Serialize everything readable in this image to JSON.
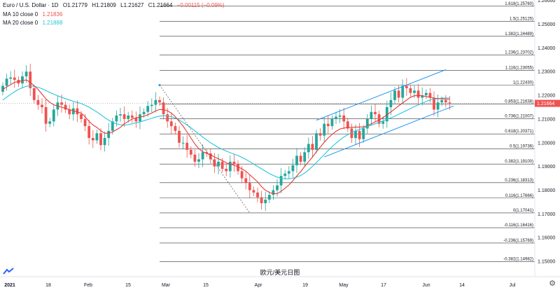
{
  "header": {
    "symbol": "Euro / U.S. Dollar · 1D",
    "open": "O1.21779",
    "high": "H1.21809",
    "low": "L1.21627",
    "close": "C1.21664",
    "change": "−0.00115 (−0.09%)",
    "ma10_label": "MA 10 close 0",
    "ma10_value": "1.21836",
    "ma20_label": "MA 20 close 0",
    "ma20_value": "1.21888"
  },
  "caption": "欧元/美元日图",
  "colors": {
    "up": "#26a69a",
    "down": "#ef5350",
    "ma10": "#e53935",
    "ma20": "#26c6da",
    "channel": "#2196f3",
    "fib": "#333333"
  },
  "chart_data": {
    "type": "candlestick",
    "ylim": [
      1.1435,
      1.2602
    ],
    "y_ticks": [
      "1.26000",
      "1.25000",
      "1.24000",
      "1.23000",
      "1.22000",
      "1.21000",
      "1.20000",
      "1.19000",
      "1.18000",
      "1.17000",
      "1.16000",
      "1.15000"
    ],
    "x_ticks": [
      "2021",
      "18",
      "Feb",
      "15",
      "Mar",
      "15",
      "Apr",
      "19",
      "May",
      "17",
      "Jun",
      "14",
      "Jul"
    ],
    "fib_levels": [
      {
        "ratio": "1.618",
        "value": 1.2576,
        "label": "1.618(1.25760)"
      },
      {
        "ratio": "1.5",
        "value": 1.25125,
        "label": "1.5(1.25125)"
      },
      {
        "ratio": "1.382",
        "value": 1.24489,
        "label": "1.382(1.24489)"
      },
      {
        "ratio": "1.236",
        "value": 1.23702,
        "label": "1.236(1.23702)"
      },
      {
        "ratio": "1.116",
        "value": 1.23055,
        "label": "1.116(1.23055)"
      },
      {
        "ratio": "1",
        "value": 1.2243,
        "label": "1(1.22430)"
      },
      {
        "ratio": "0.853",
        "value": 1.21638,
        "label": "0.853(1.21638)"
      },
      {
        "ratio": "0.736",
        "value": 1.21007,
        "label": "0.736(1.21007)"
      },
      {
        "ratio": "0.618",
        "value": 1.20371,
        "label": "0.618(1.20371)"
      },
      {
        "ratio": "0.5",
        "value": 1.19736,
        "label": "0.5(1.19736)"
      },
      {
        "ratio": "0.382",
        "value": 1.191,
        "label": "0.382(1.19100)"
      },
      {
        "ratio": "0.236",
        "value": 1.18313,
        "label": "0.236(1.18313)"
      },
      {
        "ratio": "0.116",
        "value": 1.17666,
        "label": "0.116(1.17666)"
      },
      {
        "ratio": "0",
        "value": 1.17041,
        "label": "0(1.17041)"
      },
      {
        "ratio": "-0.116",
        "value": 1.16416,
        "label": "-0.116(1.16416)"
      },
      {
        "ratio": "-0.236",
        "value": 1.15769,
        "label": "-0.236(1.15769)"
      },
      {
        "ratio": "-0.382",
        "value": 1.14982,
        "label": "-0.382(1.14982)"
      }
    ],
    "price_label": "1.21664",
    "closes": [
      1.224,
      1.227,
      1.2275,
      1.2265,
      1.225,
      1.228,
      1.23,
      1.223,
      1.218,
      1.216,
      1.215,
      1.208,
      1.209,
      1.214,
      1.217,
      1.216,
      1.214,
      1.212,
      1.2145,
      1.212,
      1.21,
      1.207,
      1.202,
      1.201,
      1.204,
      1.199,
      1.202,
      1.205,
      1.209,
      1.2115,
      1.212,
      1.21,
      1.2115,
      1.2105,
      1.209,
      1.212,
      1.213,
      1.2155,
      1.216,
      1.218,
      1.217,
      1.212,
      1.209,
      1.207,
      1.205,
      1.2,
      1.2,
      1.197,
      1.195,
      1.192,
      1.193,
      1.196,
      1.1955,
      1.193,
      1.19,
      1.192,
      1.189,
      1.188,
      1.192,
      1.191,
      1.188,
      1.185,
      1.183,
      1.18,
      1.179,
      1.177,
      1.1745,
      1.176,
      1.178,
      1.18,
      1.182,
      1.186,
      1.187,
      1.188,
      1.1905,
      1.1945,
      1.192,
      1.196,
      1.1995,
      1.197,
      1.204,
      1.203,
      1.208,
      1.207,
      1.21,
      1.211,
      1.2115,
      1.209,
      1.206,
      1.202,
      1.205,
      1.2015,
      1.206,
      1.21,
      1.213,
      1.212,
      1.208,
      1.209,
      1.215,
      1.218,
      1.222,
      1.219,
      1.224,
      1.223,
      1.221,
      1.222,
      1.219,
      1.22,
      1.221,
      1.219,
      1.214,
      1.217,
      1.218,
      1.217,
      1.2166
    ],
    "ma10": [
      1.2225,
      1.2235,
      1.2245,
      1.2255,
      1.2258,
      1.2262,
      1.2265,
      1.2255,
      1.224,
      1.2225,
      1.2205,
      1.2185,
      1.217,
      1.216,
      1.2155,
      1.215,
      1.2145,
      1.214,
      1.2135,
      1.213,
      1.2125,
      1.211,
      1.209,
      1.2075,
      1.2065,
      1.205,
      1.204,
      1.204,
      1.2045,
      1.2055,
      1.2065,
      1.208,
      1.209,
      1.21,
      1.2105,
      1.2108,
      1.2112,
      1.2118,
      1.2125,
      1.2135,
      1.214,
      1.214,
      1.2135,
      1.2125,
      1.211,
      1.209,
      1.207,
      1.2045,
      1.202,
      1.1995,
      1.1975,
      1.1962,
      1.1955,
      1.195,
      1.194,
      1.1932,
      1.1925,
      1.1915,
      1.191,
      1.1905,
      1.1898,
      1.189,
      1.188,
      1.1865,
      1.185,
      1.1835,
      1.1815,
      1.18,
      1.179,
      1.1785,
      1.1785,
      1.1795,
      1.1808,
      1.1822,
      1.184,
      1.186,
      1.1878,
      1.19,
      1.192,
      1.194,
      1.1962,
      1.1982,
      1.2002,
      1.202,
      1.2035,
      1.2048,
      1.2058,
      1.2062,
      1.2064,
      1.2065,
      1.2066,
      1.2066,
      1.2067,
      1.2072,
      1.208,
      1.2088,
      1.2096,
      1.2106,
      1.2118,
      1.213,
      1.2143,
      1.2156,
      1.2168,
      1.218,
      1.2192,
      1.2198,
      1.22,
      1.2198,
      1.2195,
      1.2192,
      1.2188,
      1.2186,
      1.2185,
      1.2184,
      1.2184
    ],
    "ma20": [
      1.218,
      1.2192,
      1.2204,
      1.2215,
      1.2225,
      1.2232,
      1.2238,
      1.224,
      1.2238,
      1.2234,
      1.2228,
      1.222,
      1.2212,
      1.2205,
      1.2198,
      1.2192,
      1.2186,
      1.218,
      1.2175,
      1.217,
      1.2165,
      1.2158,
      1.215,
      1.214,
      1.213,
      1.2118,
      1.2106,
      1.2095,
      1.2086,
      1.208,
      1.2076,
      1.2075,
      1.2076,
      1.208,
      1.2084,
      1.2088,
      1.2093,
      1.2098,
      1.2103,
      1.2108,
      1.2112,
      1.2114,
      1.2113,
      1.211,
      1.2104,
      1.2096,
      1.2086,
      1.2075,
      1.2063,
      1.205,
      1.2037,
      1.2024,
      1.2012,
      1.2,
      1.199,
      1.198,
      1.1972,
      1.1965,
      1.1958,
      1.1952,
      1.1946,
      1.1938,
      1.193,
      1.192,
      1.191,
      1.19,
      1.189,
      1.188,
      1.187,
      1.1862,
      1.1855,
      1.185,
      1.1848,
      1.1848,
      1.185,
      1.1855,
      1.1862,
      1.1872,
      1.1885,
      1.19,
      1.1916,
      1.1933,
      1.195,
      1.1967,
      1.1983,
      1.1998,
      1.2012,
      1.2024,
      1.2034,
      1.2043,
      1.205,
      1.2056,
      1.2062,
      1.2068,
      1.2074,
      1.208,
      1.2086,
      1.2092,
      1.2098,
      1.2105,
      1.2112,
      1.212,
      1.2128,
      1.2136,
      1.2144,
      1.2152,
      1.216,
      1.2167,
      1.2174,
      1.218,
      1.2184,
      1.2186,
      1.2188,
      1.2188,
      1.2189
    ]
  }
}
